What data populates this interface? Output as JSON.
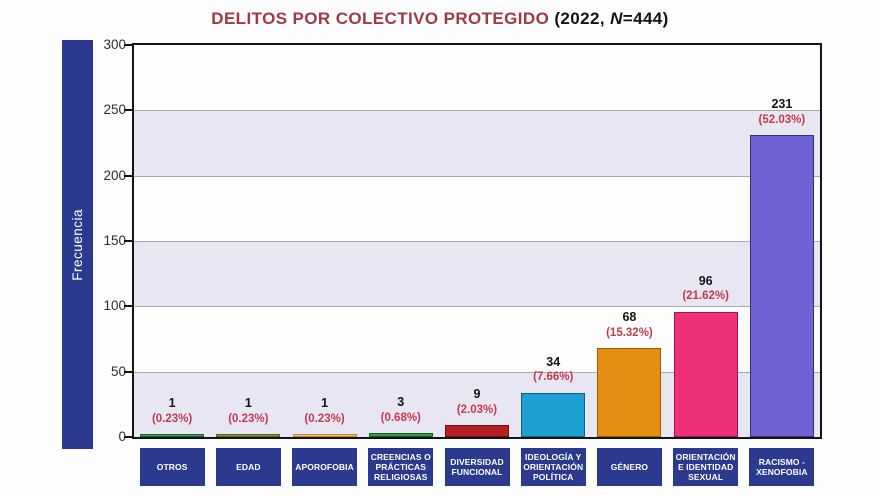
{
  "title": {
    "main": "DELITOS POR COLECTIVO PROTEGIDO",
    "note_pre": " (2022, ",
    "note_n": "N",
    "note_post": "=444)"
  },
  "y_axis": {
    "label": "Frecuencia",
    "ticks": [
      0,
      50,
      100,
      150,
      200,
      250,
      300
    ]
  },
  "chart_data": {
    "type": "bar",
    "title": "DELITOS POR COLECTIVO PROTEGIDO (2022, N=444)",
    "xlabel": "",
    "ylabel": "Frecuencia",
    "ylim": [
      0,
      300
    ],
    "yticks": [
      0,
      50,
      100,
      150,
      200,
      250,
      300
    ],
    "n_total": 444,
    "grid": "horizontal-gridlines-with-alternating-bands",
    "legend": "none",
    "categories": [
      "OTROS",
      "EDAD",
      "APOROFOBIA",
      "CREENCIAS O PRÁCTICAS RELIGIOSAS",
      "DIVERSIDAD FUNCIONAL",
      "IDEOLOGÍA Y ORIENTACIÓN POLÍTICA",
      "GÉNERO",
      "ORIENTACIÓN E IDENTIDAD SEXUAL",
      "RACISMO - XENOFOBIA"
    ],
    "values": [
      1,
      1,
      1,
      3,
      9,
      34,
      68,
      96,
      231
    ],
    "percent_labels": [
      "(0.23%)",
      "(0.23%)",
      "(0.23%)",
      "(0.68%)",
      "(2.03%)",
      "(7.66%)",
      "(15.32%)",
      "(21.62%)",
      "(52.03%)"
    ],
    "bar_fills": [
      "#44a45e",
      "#8a9a3c",
      "#eabf82",
      "#2f9e44",
      "#b41f24",
      "#1da0d2",
      "#e68d13",
      "#ef3079",
      "#6f61d6"
    ],
    "bar_borders": [
      "#1c5a30",
      "#55611c",
      "#c9822e",
      "#175c26",
      "#701114",
      "#0e6284",
      "#945c08",
      "#97164a",
      "#35307c"
    ]
  },
  "colors": {
    "title_accent": "#9e3a48",
    "title_text": "#141414",
    "axis_panel_navy": "#2b3a8f",
    "band_lavender": "#e8e6f2",
    "gridline": "#aaa8b6",
    "axis_line": "#141414",
    "value_number": "#141414",
    "value_percent": "#c13a4e",
    "category_box": "#2b3a8f",
    "category_text": "#ffffff",
    "background": "#fdfdfd"
  }
}
